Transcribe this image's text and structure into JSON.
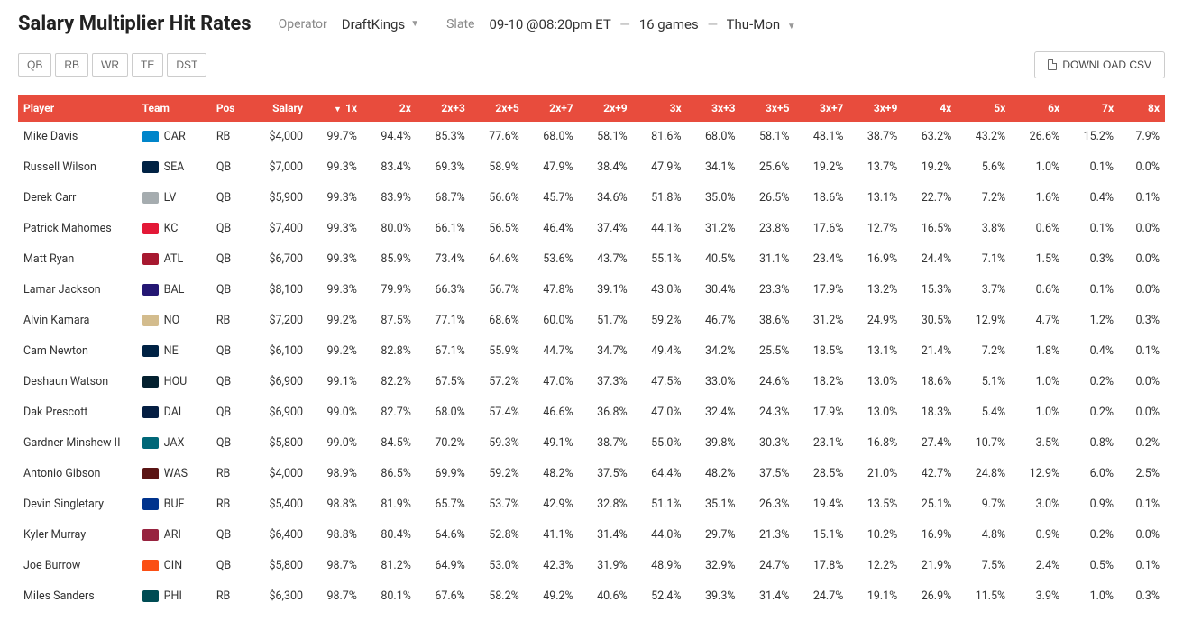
{
  "title": "Salary Multiplier Hit Rates",
  "operator": {
    "label": "Operator",
    "value": "DraftKings"
  },
  "slate": {
    "label": "Slate",
    "date": "09-10 @08:20pm ET",
    "games": "16 games",
    "span": "Thu-Mon"
  },
  "positions": [
    "QB",
    "RB",
    "WR",
    "TE",
    "DST"
  ],
  "download": "DOWNLOAD CSV",
  "columns": [
    "Player",
    "Team",
    "Pos",
    "Salary",
    "1x",
    "2x",
    "2x+3",
    "2x+5",
    "2x+7",
    "2x+9",
    "3x",
    "3x+3",
    "3x+5",
    "3x+7",
    "3x+9",
    "4x",
    "5x",
    "6x",
    "7x",
    "8x"
  ],
  "sortedCol": "1x",
  "rows": [
    {
      "player": "Mike Davis",
      "team": "CAR",
      "logo": "#0085ca",
      "pos": "RB",
      "salary": "$4,000",
      "v": [
        "99.7%",
        "94.4%",
        "85.3%",
        "77.6%",
        "68.0%",
        "58.1%",
        "81.6%",
        "68.0%",
        "58.1%",
        "48.1%",
        "38.7%",
        "63.2%",
        "43.2%",
        "26.6%",
        "15.2%",
        "7.9%"
      ]
    },
    {
      "player": "Russell Wilson",
      "team": "SEA",
      "logo": "#002244",
      "pos": "QB",
      "salary": "$7,000",
      "v": [
        "99.3%",
        "83.4%",
        "69.3%",
        "58.9%",
        "47.9%",
        "38.4%",
        "47.9%",
        "34.1%",
        "25.6%",
        "19.2%",
        "13.7%",
        "19.2%",
        "5.6%",
        "1.0%",
        "0.1%",
        "0.0%"
      ]
    },
    {
      "player": "Derek Carr",
      "team": "LV",
      "logo": "#a5acaf",
      "pos": "QB",
      "salary": "$5,900",
      "v": [
        "99.3%",
        "83.9%",
        "68.7%",
        "56.6%",
        "45.7%",
        "34.6%",
        "51.8%",
        "35.0%",
        "26.5%",
        "18.6%",
        "13.1%",
        "22.7%",
        "7.2%",
        "1.6%",
        "0.4%",
        "0.1%"
      ]
    },
    {
      "player": "Patrick Mahomes",
      "team": "KC",
      "logo": "#e31837",
      "pos": "QB",
      "salary": "$7,400",
      "v": [
        "99.3%",
        "80.0%",
        "66.1%",
        "56.5%",
        "46.4%",
        "37.4%",
        "44.1%",
        "31.2%",
        "23.8%",
        "17.6%",
        "12.7%",
        "16.5%",
        "3.8%",
        "0.6%",
        "0.1%",
        "0.0%"
      ]
    },
    {
      "player": "Matt Ryan",
      "team": "ATL",
      "logo": "#a71930",
      "pos": "QB",
      "salary": "$6,700",
      "v": [
        "99.3%",
        "85.9%",
        "73.4%",
        "64.6%",
        "53.6%",
        "43.7%",
        "55.1%",
        "40.5%",
        "31.1%",
        "23.4%",
        "16.9%",
        "24.4%",
        "7.1%",
        "1.5%",
        "0.3%",
        "0.0%"
      ]
    },
    {
      "player": "Lamar Jackson",
      "team": "BAL",
      "logo": "#241773",
      "pos": "QB",
      "salary": "$8,100",
      "v": [
        "99.3%",
        "79.9%",
        "66.3%",
        "56.7%",
        "47.8%",
        "39.1%",
        "43.0%",
        "30.4%",
        "23.3%",
        "17.9%",
        "13.2%",
        "15.3%",
        "3.7%",
        "0.6%",
        "0.1%",
        "0.0%"
      ]
    },
    {
      "player": "Alvin Kamara",
      "team": "NO",
      "logo": "#d3bc8d",
      "pos": "RB",
      "salary": "$7,200",
      "v": [
        "99.2%",
        "87.5%",
        "77.1%",
        "68.6%",
        "60.0%",
        "51.7%",
        "59.2%",
        "46.7%",
        "38.6%",
        "31.2%",
        "24.9%",
        "30.5%",
        "12.9%",
        "4.7%",
        "1.2%",
        "0.3%"
      ]
    },
    {
      "player": "Cam Newton",
      "team": "NE",
      "logo": "#002244",
      "pos": "QB",
      "salary": "$6,100",
      "v": [
        "99.2%",
        "82.8%",
        "67.1%",
        "55.9%",
        "44.7%",
        "34.7%",
        "49.4%",
        "34.2%",
        "25.5%",
        "18.5%",
        "13.1%",
        "21.4%",
        "7.2%",
        "1.8%",
        "0.4%",
        "0.1%"
      ]
    },
    {
      "player": "Deshaun Watson",
      "team": "HOU",
      "logo": "#03202f",
      "pos": "QB",
      "salary": "$6,900",
      "v": [
        "99.1%",
        "82.2%",
        "67.5%",
        "57.2%",
        "47.0%",
        "37.3%",
        "47.5%",
        "33.0%",
        "24.6%",
        "18.2%",
        "13.0%",
        "18.6%",
        "5.1%",
        "1.0%",
        "0.2%",
        "0.0%"
      ]
    },
    {
      "player": "Dak Prescott",
      "team": "DAL",
      "logo": "#041e42",
      "pos": "QB",
      "salary": "$6,900",
      "v": [
        "99.0%",
        "82.7%",
        "68.0%",
        "57.4%",
        "46.6%",
        "36.8%",
        "47.0%",
        "32.4%",
        "24.3%",
        "17.9%",
        "13.0%",
        "18.3%",
        "5.4%",
        "1.0%",
        "0.2%",
        "0.0%"
      ]
    },
    {
      "player": "Gardner Minshew II",
      "team": "JAX",
      "logo": "#006778",
      "pos": "QB",
      "salary": "$5,800",
      "v": [
        "99.0%",
        "84.5%",
        "70.2%",
        "59.3%",
        "49.1%",
        "38.7%",
        "55.0%",
        "39.8%",
        "30.3%",
        "23.1%",
        "16.8%",
        "27.4%",
        "10.7%",
        "3.5%",
        "0.8%",
        "0.2%"
      ]
    },
    {
      "player": "Antonio Gibson",
      "team": "WAS",
      "logo": "#5a1414",
      "pos": "RB",
      "salary": "$4,000",
      "v": [
        "98.9%",
        "86.5%",
        "69.9%",
        "59.2%",
        "48.2%",
        "37.5%",
        "64.4%",
        "48.2%",
        "37.5%",
        "28.5%",
        "21.0%",
        "42.7%",
        "24.8%",
        "12.9%",
        "6.0%",
        "2.5%"
      ]
    },
    {
      "player": "Devin Singletary",
      "team": "BUF",
      "logo": "#00338d",
      "pos": "RB",
      "salary": "$5,400",
      "v": [
        "98.8%",
        "81.9%",
        "65.7%",
        "53.7%",
        "42.9%",
        "32.8%",
        "51.1%",
        "35.1%",
        "26.3%",
        "19.4%",
        "13.5%",
        "25.1%",
        "9.7%",
        "3.0%",
        "0.9%",
        "0.1%"
      ]
    },
    {
      "player": "Kyler Murray",
      "team": "ARI",
      "logo": "#97233f",
      "pos": "QB",
      "salary": "$6,400",
      "v": [
        "98.8%",
        "80.4%",
        "64.6%",
        "52.8%",
        "41.1%",
        "31.4%",
        "44.0%",
        "29.7%",
        "21.3%",
        "15.1%",
        "10.2%",
        "16.9%",
        "4.8%",
        "0.9%",
        "0.2%",
        "0.0%"
      ]
    },
    {
      "player": "Joe Burrow",
      "team": "CIN",
      "logo": "#fb4f14",
      "pos": "QB",
      "salary": "$5,800",
      "v": [
        "98.7%",
        "81.2%",
        "64.9%",
        "53.0%",
        "42.3%",
        "31.9%",
        "48.9%",
        "32.9%",
        "24.7%",
        "17.8%",
        "12.2%",
        "21.9%",
        "7.5%",
        "2.4%",
        "0.5%",
        "0.1%"
      ]
    },
    {
      "player": "Miles Sanders",
      "team": "PHI",
      "logo": "#004c54",
      "pos": "RB",
      "salary": "$6,300",
      "v": [
        "98.7%",
        "80.1%",
        "67.6%",
        "58.2%",
        "49.2%",
        "40.6%",
        "52.4%",
        "39.3%",
        "31.4%",
        "24.7%",
        "19.1%",
        "26.9%",
        "11.5%",
        "3.9%",
        "1.0%",
        "0.3%"
      ]
    }
  ]
}
